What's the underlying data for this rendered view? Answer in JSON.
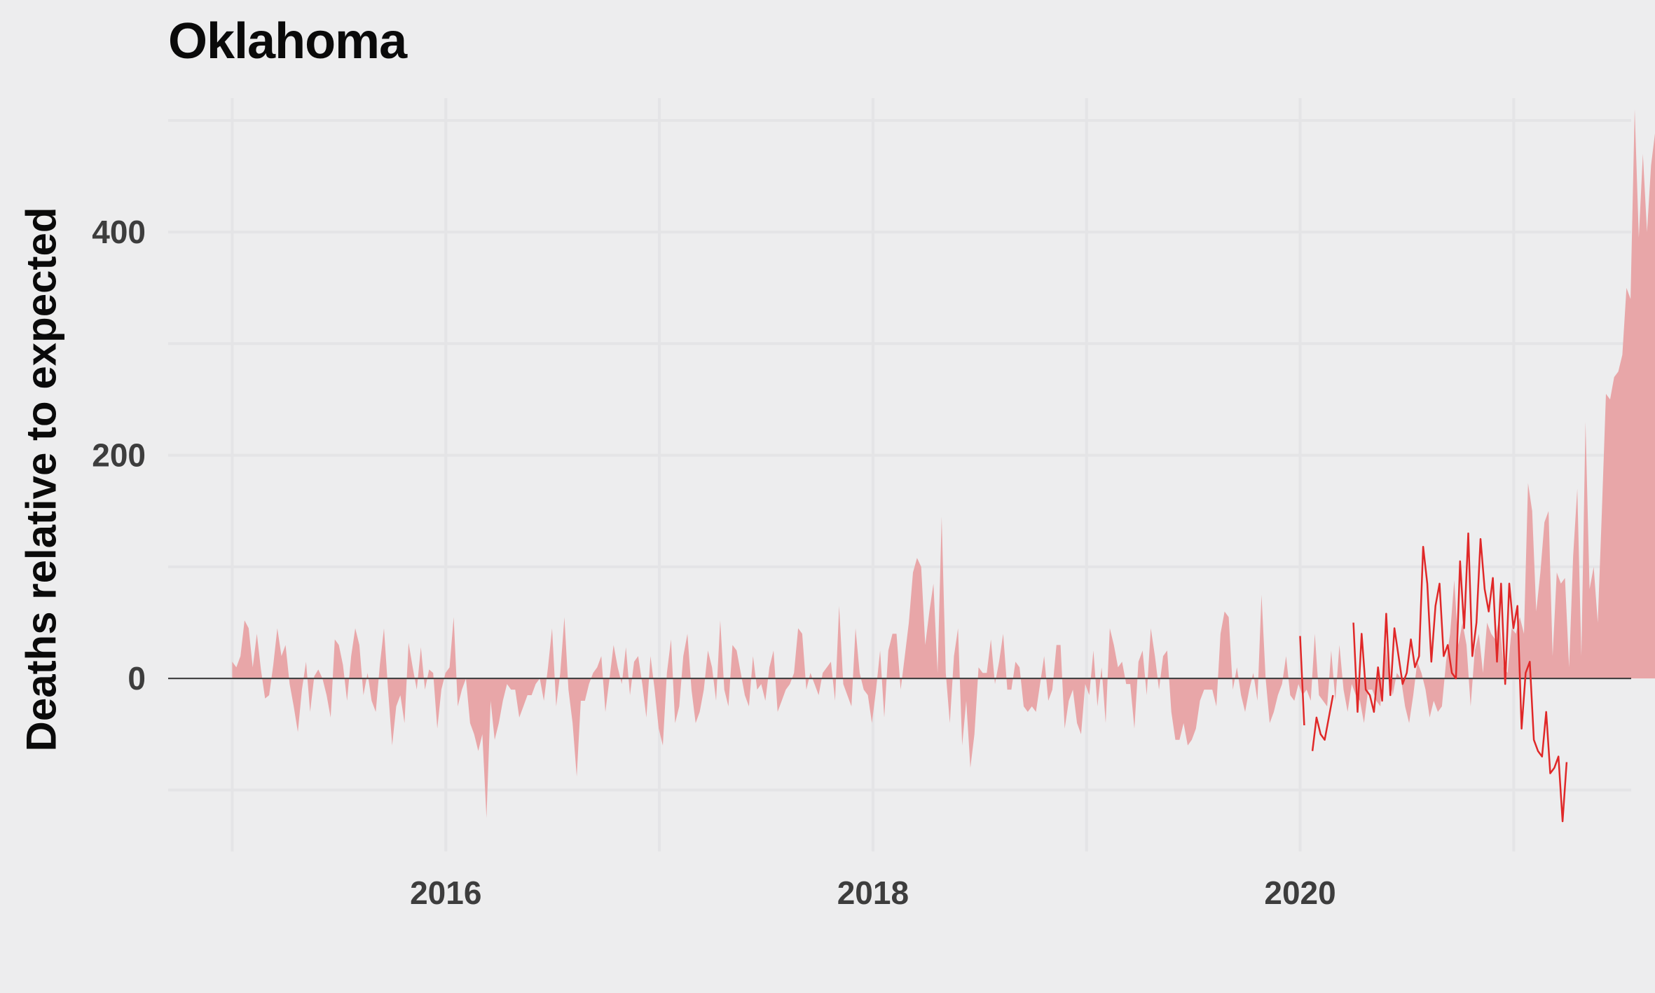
{
  "chart_data": {
    "type": "area",
    "title": "Oklahoma",
    "xlabel": "",
    "ylabel": "Deaths relative to expected",
    "xlim": [
      2014.7,
      2021.55
    ],
    "ylim": [
      -155,
      520
    ],
    "grid": true,
    "legend": "none",
    "xticks": [
      {
        "value": 2016,
        "label": "2016"
      },
      {
        "value": 2018,
        "label": "2018"
      },
      {
        "value": 2020,
        "label": "2020"
      }
    ],
    "xgrid_minor": [
      2015,
      2017,
      2019,
      2021
    ],
    "yticks": [
      {
        "value": 0,
        "label": "0"
      },
      {
        "value": 200,
        "label": "200"
      },
      {
        "value": 400,
        "label": "400"
      }
    ],
    "ygrid_minor": [
      -100,
      100,
      300,
      500
    ],
    "colors": {
      "area_fill": "#e8a6a8",
      "line": "#e02828",
      "zero_line": "#3a3a3a",
      "grid": "#e4e4e6",
      "background": "#ededee"
    },
    "series": [
      {
        "kind": "area",
        "x_start": 2015.0,
        "x_step": 0.0192,
        "values": [
          15,
          10,
          20,
          52,
          45,
          10,
          40,
          8,
          -18,
          -15,
          12,
          45,
          20,
          30,
          -5,
          -25,
          -48,
          -10,
          15,
          -30,
          2,
          8,
          0,
          -15,
          -35,
          35,
          30,
          12,
          -20,
          20,
          45,
          30,
          -15,
          5,
          -20,
          -30,
          12,
          45,
          -10,
          -60,
          -25,
          -15,
          -40,
          32,
          10,
          -10,
          28,
          -10,
          8,
          5,
          -45,
          -10,
          5,
          10,
          55,
          -25,
          -10,
          0,
          -40,
          -50,
          -65,
          -50,
          -125,
          -20,
          -55,
          -40,
          -20,
          -5,
          -10,
          -10,
          -35,
          -25,
          -15,
          -15,
          -5,
          0,
          -20,
          10,
          45,
          -25,
          5,
          55,
          -10,
          -40,
          -88,
          -20,
          -20,
          -5,
          5,
          10,
          20,
          -30,
          0,
          30,
          10,
          -5,
          28,
          -15,
          15,
          20,
          -5,
          -35,
          20,
          -10,
          -45,
          -60,
          5,
          35,
          -40,
          -25,
          20,
          40,
          -10,
          -40,
          -30,
          -10,
          25,
          10,
          -20,
          52,
          -10,
          -25,
          30,
          25,
          5,
          -15,
          -25,
          20,
          -10,
          -5,
          -20,
          10,
          25,
          -30,
          -20,
          -10,
          -5,
          5,
          45,
          40,
          -10,
          5,
          -5,
          -15,
          5,
          10,
          15,
          -20,
          65,
          -5,
          -15,
          -25,
          45,
          5,
          -10,
          -15,
          -40,
          -10,
          25,
          -35,
          25,
          40,
          40,
          -10,
          20,
          50,
          95,
          108,
          100,
          30,
          60,
          85,
          5,
          145,
          5,
          -40,
          20,
          45,
          -60,
          -20,
          -80,
          -50,
          10,
          5,
          5,
          35,
          -5,
          15,
          40,
          -10,
          -10,
          15,
          10,
          -25,
          -30,
          -25,
          -30,
          -5,
          20,
          -20,
          -10,
          30,
          30,
          -45,
          -20,
          -10,
          -40,
          -50,
          -5,
          -15,
          25,
          -25,
          10,
          -40,
          45,
          30,
          10,
          15,
          -5,
          -5,
          -45,
          15,
          25,
          -15,
          45,
          20,
          -10,
          20,
          25,
          -30,
          -55,
          -55,
          -40,
          -60,
          -55,
          -45,
          -20,
          -10,
          -10,
          -10,
          -25,
          40,
          60,
          55,
          -10,
          10,
          -15,
          -30,
          -10,
          5,
          -20,
          75,
          0,
          -40,
          -30,
          -15,
          -5,
          20,
          -15,
          -20,
          -5,
          -15,
          -10,
          -20,
          40,
          -15,
          -20,
          -25,
          25,
          -20,
          30,
          -10,
          -30,
          -5,
          -15,
          -20,
          -40,
          -10,
          -10,
          -20,
          -25,
          40,
          5,
          -15,
          5,
          0,
          -25,
          -40,
          -15,
          15,
          5,
          -10,
          -35,
          -20,
          -30,
          -25,
          15,
          40,
          88,
          30,
          50,
          30,
          -25,
          25,
          40,
          5,
          50,
          40,
          35,
          55,
          10,
          5,
          45,
          40,
          55,
          40,
          175,
          150,
          60,
          95,
          140,
          150,
          20,
          95,
          85,
          90,
          10,
          110,
          170,
          20,
          230,
          80,
          100,
          50,
          150,
          255,
          250,
          270,
          275,
          290,
          350,
          340,
          510,
          395,
          470,
          400,
          460,
          490,
          385,
          415,
          420,
          300,
          150,
          100,
          120,
          35,
          0,
          -15,
          -40,
          -50
        ]
      },
      {
        "kind": "line",
        "x_start": 2020.0,
        "x_step": 0.0192,
        "values": [
          38,
          -42,
          null,
          -65,
          -35,
          -50,
          -55,
          -35,
          -15,
          null,
          null,
          null,
          null,
          50,
          -30,
          40,
          -10,
          -15,
          -30,
          10,
          -20,
          58,
          -15,
          45,
          20,
          -5,
          5,
          35,
          10,
          20,
          118,
          85,
          15,
          65,
          85,
          20,
          30,
          5,
          0,
          105,
          45,
          130,
          20,
          50,
          125,
          80,
          60,
          90,
          15,
          85,
          -5,
          85,
          45,
          65,
          -45,
          5,
          15,
          -55,
          -65,
          -70,
          -30,
          -85,
          -80,
          -70,
          -128,
          -75
        ]
      }
    ]
  }
}
